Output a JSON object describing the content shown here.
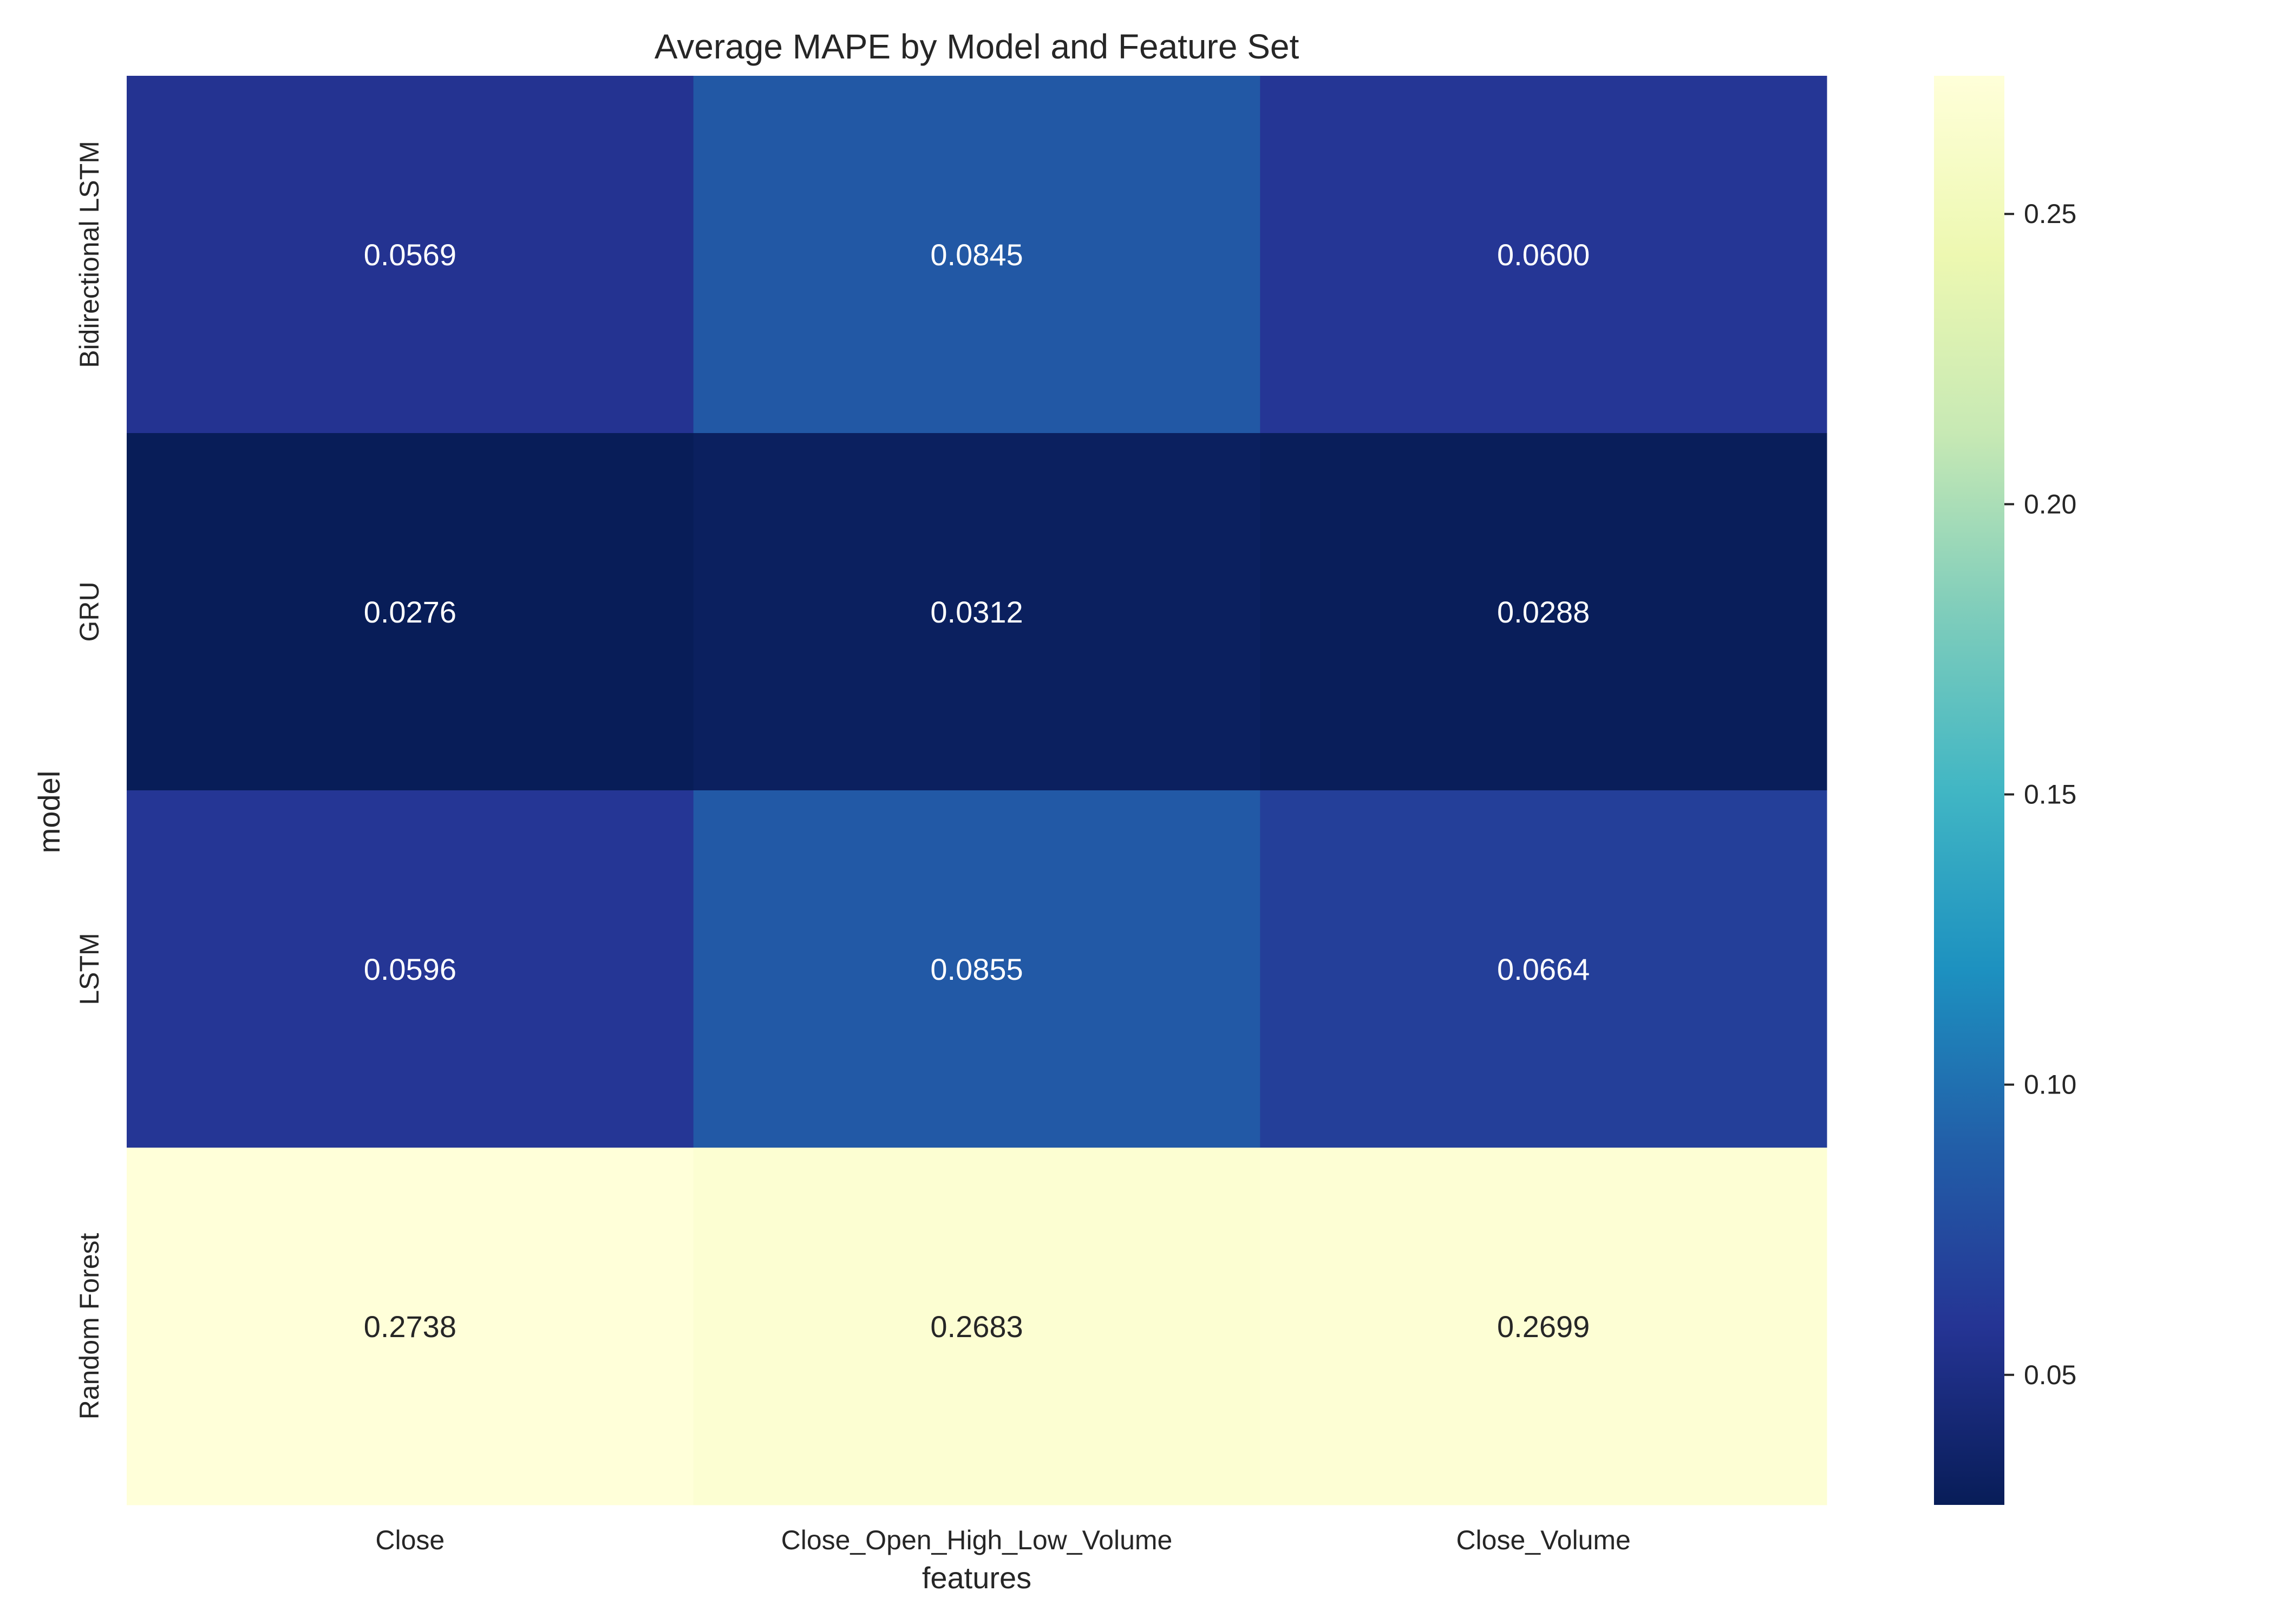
{
  "chart_data": {
    "type": "heatmap",
    "title": "Average MAPE by Model and Feature Set",
    "xlabel": "features",
    "ylabel": "model",
    "x_categories": [
      "Close",
      "Close_Open_High_Low_Volume",
      "Close_Volume"
    ],
    "y_categories": [
      "Bidirectional LSTM",
      "GRU",
      "LSTM",
      "Random Forest"
    ],
    "values": [
      [
        0.0569,
        0.0845,
        0.06
      ],
      [
        0.0276,
        0.0312,
        0.0288
      ],
      [
        0.0596,
        0.0855,
        0.0664
      ],
      [
        0.2738,
        0.2683,
        0.2699
      ]
    ],
    "value_labels": [
      [
        "0.0569",
        "0.0845",
        "0.0600"
      ],
      [
        "0.0276",
        "0.0312",
        "0.0288"
      ],
      [
        "0.0596",
        "0.0855",
        "0.0664"
      ],
      [
        "0.2738",
        "0.2683",
        "0.2699"
      ]
    ],
    "colormap": "YlGnBu",
    "colorbar": {
      "range": [
        0.0276,
        0.2738
      ],
      "ticks": [
        0.05,
        0.1,
        0.15,
        0.2,
        0.25
      ],
      "tick_labels": [
        "0.05",
        "0.10",
        "0.15",
        "0.20",
        "0.25"
      ]
    },
    "colors": {
      "low": "#081d58",
      "high": "#ffffd9",
      "annotation_dark": "#ffffff",
      "annotation_light": "#262626"
    }
  }
}
